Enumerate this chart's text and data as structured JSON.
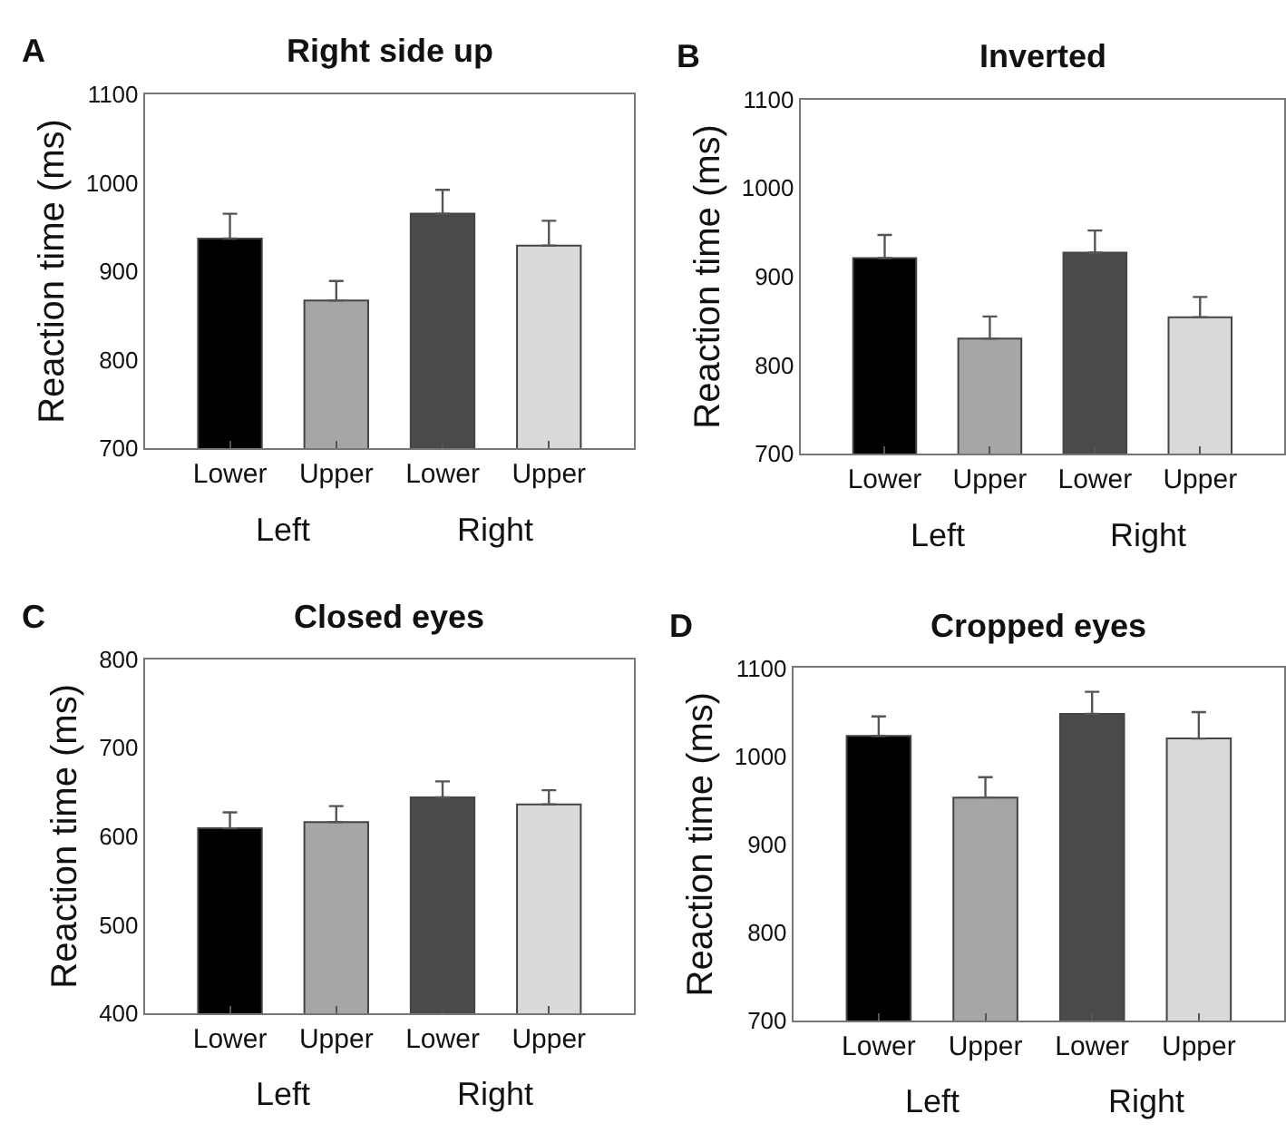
{
  "chart_data": [
    {
      "type": "bar",
      "title": "Right side up",
      "ylabel": "Reaction time (ms)",
      "categories": [
        "Lower",
        "Upper",
        "Lower",
        "Upper"
      ],
      "values": [
        937,
        867,
        965,
        929
      ],
      "errors": [
        28,
        22,
        27,
        28
      ],
      "colors": [
        "#000000",
        "#a6a6a6",
        "#4a4a4a",
        "#d9d9d9"
      ],
      "ylim": [
        700,
        1100
      ],
      "yticks": [
        700,
        800,
        900,
        1000,
        1100
      ],
      "annotations": [
        "A",
        "Left",
        "Right"
      ]
    },
    {
      "type": "bar",
      "title": "Inverted",
      "ylabel": "Reaction time (ms)",
      "categories": [
        "Lower",
        "Upper",
        "Lower",
        "Upper"
      ],
      "values": [
        921,
        830,
        927,
        854
      ],
      "errors": [
        26,
        25,
        25,
        23
      ],
      "colors": [
        "#000000",
        "#a6a6a6",
        "#4a4a4a",
        "#d9d9d9"
      ],
      "ylim": [
        700,
        1100
      ],
      "yticks": [
        700,
        800,
        900,
        1000,
        1100
      ],
      "annotations": [
        "B",
        "Left",
        "Right"
      ]
    },
    {
      "type": "bar",
      "title": "Closed eyes",
      "ylabel": "Reaction time (ms)",
      "categories": [
        "Lower",
        "Upper",
        "Lower",
        "Upper"
      ],
      "values": [
        609,
        616,
        644,
        636
      ],
      "errors": [
        18,
        18,
        18,
        16
      ],
      "colors": [
        "#000000",
        "#a6a6a6",
        "#4a4a4a",
        "#d9d9d9"
      ],
      "ylim": [
        400,
        800
      ],
      "yticks": [
        400,
        500,
        600,
        700,
        800
      ],
      "annotations": [
        "C",
        "Left",
        "Right"
      ]
    },
    {
      "type": "bar",
      "title": "Cropped eyes",
      "ylabel": "Reaction time (ms)",
      "categories": [
        "Lower",
        "Upper",
        "Lower",
        "Upper"
      ],
      "values": [
        1023,
        953,
        1048,
        1020
      ],
      "errors": [
        22,
        23,
        25,
        30
      ],
      "colors": [
        "#000000",
        "#a6a6a6",
        "#4a4a4a",
        "#d9d9d9"
      ],
      "ylim": [
        700,
        1100
      ],
      "yticks": [
        700,
        800,
        900,
        1000,
        1100
      ],
      "annotations": [
        "D",
        "Left",
        "Right"
      ]
    }
  ]
}
